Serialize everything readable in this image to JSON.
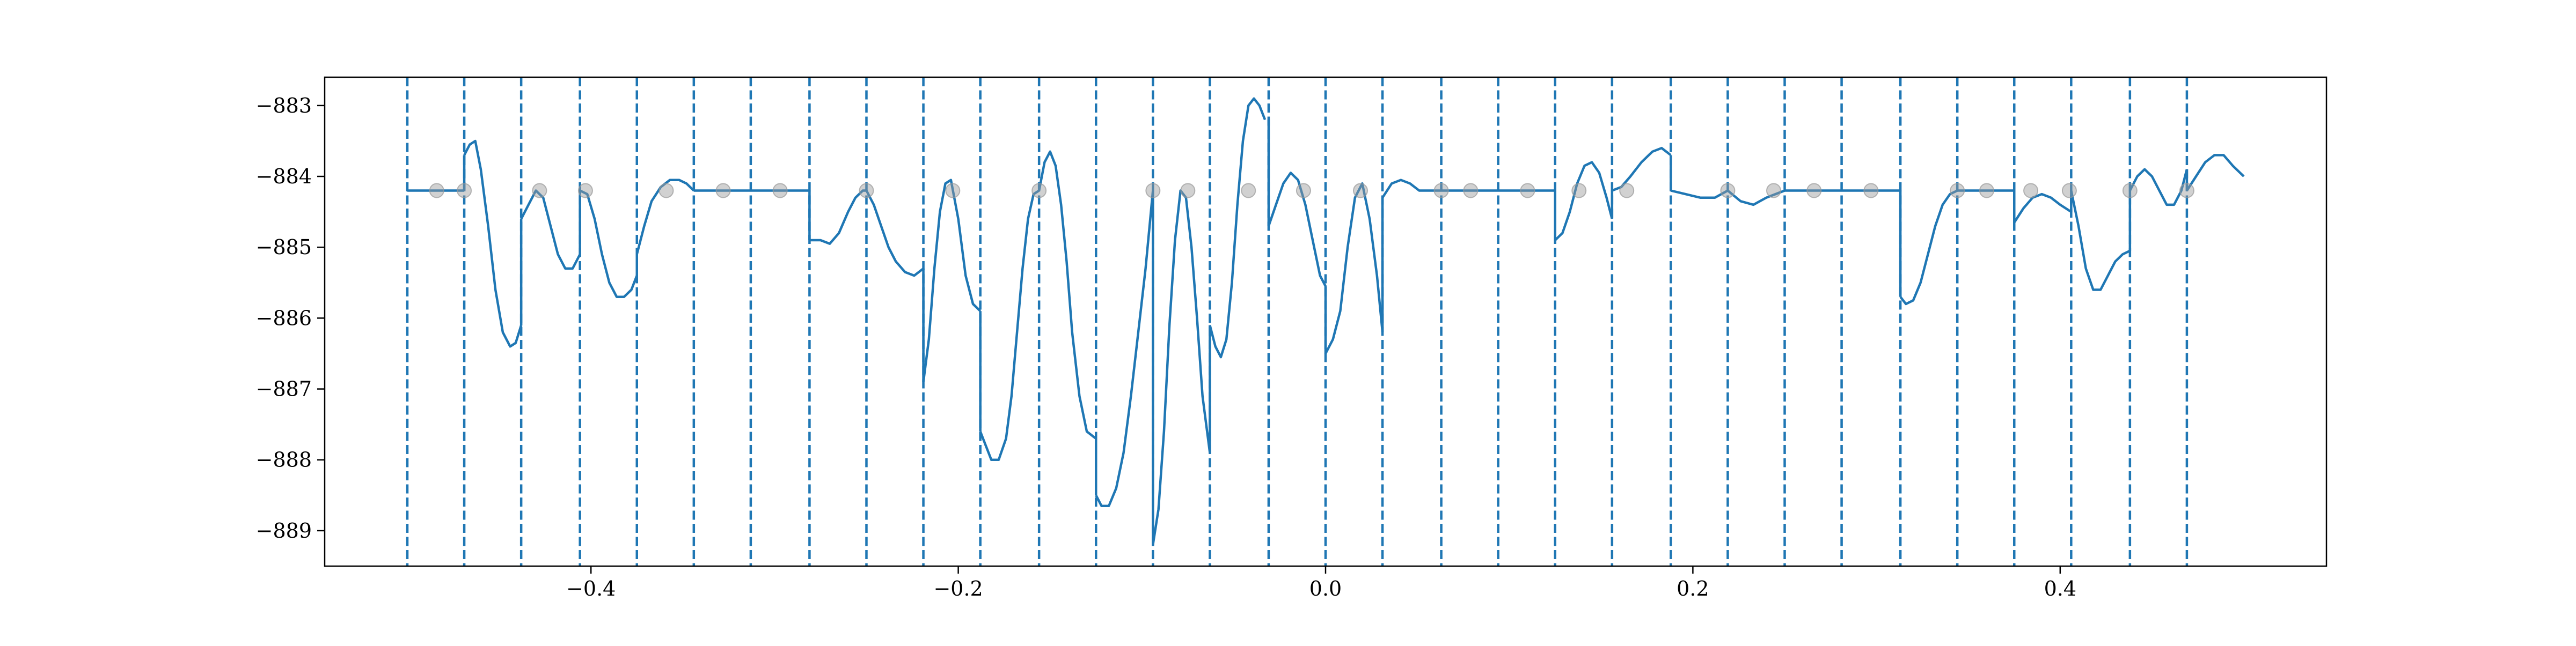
{
  "chart_data": {
    "type": "line",
    "title": "",
    "xlabel": "",
    "ylabel": "",
    "xlim": [
      -0.545,
      0.545
    ],
    "ylim": [
      -889.5,
      -882.6
    ],
    "grid": false,
    "legend": "none",
    "x_ticks": [
      -0.4,
      -0.2,
      0.0,
      0.2,
      0.4
    ],
    "x_tick_labels": [
      "−0.4",
      "−0.2",
      "0.0",
      "0.2",
      "0.4"
    ],
    "y_ticks": [
      -883,
      -884,
      -885,
      -886,
      -887,
      -888,
      -889
    ],
    "y_tick_labels": [
      "−883",
      "−884",
      "−885",
      "−886",
      "−887",
      "−888",
      "−889"
    ],
    "colors": {
      "line": "#1f77b4",
      "marker_fill": "#999999",
      "axes": "#000000"
    },
    "vertical_lines": {
      "style": "dashed",
      "x": [
        -0.5,
        -0.469,
        -0.438,
        -0.406,
        -0.375,
        -0.344,
        -0.313,
        -0.281,
        -0.25,
        -0.219,
        -0.188,
        -0.156,
        -0.125,
        -0.094,
        -0.063,
        -0.031,
        0.0,
        0.031,
        0.063,
        0.094,
        0.125,
        0.156,
        0.188,
        0.219,
        0.25,
        0.281,
        0.313,
        0.344,
        0.375,
        0.406,
        0.438,
        0.469
      ]
    },
    "series": [
      {
        "kind": "line",
        "segments": [
          {
            "x": [
              -0.5,
              -0.469
            ],
            "y": [
              -884.2,
              -884.2
            ]
          },
          {
            "x": [
              -0.469,
              -0.466,
              -0.463,
              -0.46,
              -0.456,
              -0.452,
              -0.448,
              -0.444,
              -0.441,
              -0.438
            ],
            "y": [
              -883.7,
              -883.55,
              -883.5,
              -883.9,
              -884.7,
              -885.6,
              -886.2,
              -886.4,
              -886.35,
              -886.1
            ]
          },
          {
            "x": [
              -0.438,
              -0.434,
              -0.43,
              -0.426,
              -0.422,
              -0.418,
              -0.414,
              -0.41,
              -0.406
            ],
            "y": [
              -884.6,
              -884.4,
              -884.2,
              -884.3,
              -884.7,
              -885.1,
              -885.3,
              -885.3,
              -885.1
            ]
          },
          {
            "x": [
              -0.406,
              -0.402,
              -0.398,
              -0.394,
              -0.39,
              -0.386,
              -0.382,
              -0.378,
              -0.375
            ],
            "y": [
              -884.2,
              -884.25,
              -884.6,
              -885.1,
              -885.5,
              -885.7,
              -885.7,
              -885.6,
              -885.4
            ]
          },
          {
            "x": [
              -0.375,
              -0.371,
              -0.367,
              -0.362,
              -0.357,
              -0.352,
              -0.348,
              -0.344
            ],
            "y": [
              -885.1,
              -884.7,
              -884.35,
              -884.15,
              -884.05,
              -884.05,
              -884.1,
              -884.2
            ]
          },
          {
            "x": [
              -0.344,
              -0.281
            ],
            "y": [
              -884.2,
              -884.2
            ]
          },
          {
            "x": [
              -0.281,
              -0.275,
              -0.27,
              -0.265,
              -0.26,
              -0.256,
              -0.252,
              -0.25
            ],
            "y": [
              -884.9,
              -884.9,
              -884.95,
              -884.8,
              -884.5,
              -884.3,
              -884.2,
              -884.2
            ]
          },
          {
            "x": [
              -0.25,
              -0.246,
              -0.242,
              -0.238,
              -0.234,
              -0.229,
              -0.224,
              -0.219
            ],
            "y": [
              -884.2,
              -884.4,
              -884.7,
              -885.0,
              -885.2,
              -885.35,
              -885.4,
              -885.3
            ]
          },
          {
            "x": [
              -0.219,
              -0.216,
              -0.213,
              -0.21,
              -0.207,
              -0.204,
              -0.2,
              -0.196,
              -0.192,
              -0.188
            ],
            "y": [
              -886.9,
              -886.3,
              -885.3,
              -884.5,
              -884.1,
              -884.05,
              -884.6,
              -885.4,
              -885.8,
              -885.9
            ]
          },
          {
            "x": [
              -0.188,
              -0.185,
              -0.182,
              -0.178,
              -0.174,
              -0.171,
              -0.168,
              -0.165,
              -0.162,
              -0.159,
              -0.156
            ],
            "y": [
              -887.6,
              -887.8,
              -888.0,
              -888.0,
              -887.7,
              -887.1,
              -886.2,
              -885.3,
              -884.6,
              -884.25,
              -884.2
            ]
          },
          {
            "x": [
              -0.156,
              -0.153,
              -0.15,
              -0.147,
              -0.144,
              -0.141,
              -0.138,
              -0.134,
              -0.13,
              -0.125
            ],
            "y": [
              -884.2,
              -883.8,
              -883.65,
              -883.85,
              -884.4,
              -885.2,
              -886.2,
              -887.1,
              -887.6,
              -887.7
            ]
          },
          {
            "x": [
              -0.125,
              -0.122,
              -0.118,
              -0.114,
              -0.11,
              -0.106,
              -0.102,
              -0.098,
              -0.094
            ],
            "y": [
              -888.5,
              -888.65,
              -888.65,
              -888.4,
              -887.9,
              -887.1,
              -886.2,
              -885.3,
              -884.2
            ]
          },
          {
            "x": [
              -0.094,
              -0.091,
              -0.088,
              -0.085,
              -0.082,
              -0.079,
              -0.076,
              -0.073,
              -0.07,
              -0.067,
              -0.063
            ],
            "y": [
              -889.2,
              -888.7,
              -887.6,
              -886.1,
              -884.9,
              -884.2,
              -884.3,
              -885.0,
              -886.0,
              -887.1,
              -887.9
            ]
          },
          {
            "x": [
              -0.063,
              -0.06,
              -0.057,
              -0.054,
              -0.051,
              -0.048,
              -0.045,
              -0.042,
              -0.039,
              -0.036,
              -0.033
            ],
            "y": [
              -886.1,
              -886.4,
              -886.55,
              -886.3,
              -885.5,
              -884.4,
              -883.5,
              -883.0,
              -882.9,
              -883.0,
              -883.2
            ]
          },
          {
            "x": [
              -0.031,
              -0.027,
              -0.023,
              -0.019,
              -0.015,
              -0.011,
              -0.007,
              -0.003,
              0.0
            ],
            "y": [
              -884.7,
              -884.4,
              -884.1,
              -883.95,
              -884.05,
              -884.4,
              -884.9,
              -885.4,
              -885.55
            ]
          },
          {
            "x": [
              0.0,
              0.004,
              0.008,
              0.012,
              0.016,
              0.02,
              0.024,
              0.028,
              0.031
            ],
            "y": [
              -886.5,
              -886.3,
              -885.9,
              -885.0,
              -884.3,
              -884.1,
              -884.6,
              -885.4,
              -886.2
            ]
          },
          {
            "x": [
              0.031,
              0.036,
              0.041,
              0.046,
              0.051,
              0.056,
              0.063
            ],
            "y": [
              -884.3,
              -884.1,
              -884.05,
              -884.1,
              -884.2,
              -884.2,
              -884.2
            ]
          },
          {
            "x": [
              0.063,
              0.125
            ],
            "y": [
              -884.2,
              -884.2
            ]
          },
          {
            "x": [
              0.125,
              0.129,
              0.133,
              0.137,
              0.141,
              0.145,
              0.149,
              0.153,
              0.156
            ],
            "y": [
              -884.9,
              -884.8,
              -884.5,
              -884.1,
              -883.85,
              -883.8,
              -883.95,
              -884.3,
              -884.6
            ]
          },
          {
            "x": [
              0.156,
              0.161,
              0.166,
              0.172,
              0.178,
              0.183,
              0.188
            ],
            "y": [
              -884.2,
              -884.15,
              -884.0,
              -883.8,
              -883.65,
              -883.6,
              -883.7
            ]
          },
          {
            "x": [
              0.188,
              0.196,
              0.204,
              0.212,
              0.219
            ],
            "y": [
              -884.2,
              -884.25,
              -884.3,
              -884.3,
              -884.2
            ]
          },
          {
            "x": [
              0.219,
              0.226,
              0.233,
              0.24,
              0.25
            ],
            "y": [
              -884.2,
              -884.35,
              -884.4,
              -884.3,
              -884.2
            ]
          },
          {
            "x": [
              0.25,
              0.313
            ],
            "y": [
              -884.2,
              -884.2
            ]
          },
          {
            "x": [
              0.313,
              0.316,
              0.32,
              0.324,
              0.328,
              0.332,
              0.336,
              0.34,
              0.344
            ],
            "y": [
              -885.7,
              -885.8,
              -885.75,
              -885.5,
              -885.1,
              -884.7,
              -884.4,
              -884.25,
              -884.2
            ]
          },
          {
            "x": [
              0.344,
              0.375
            ],
            "y": [
              -884.2,
              -884.2
            ]
          },
          {
            "x": [
              0.375,
              0.38,
              0.385,
              0.39,
              0.395,
              0.4,
              0.406
            ],
            "y": [
              -884.65,
              -884.45,
              -884.3,
              -884.25,
              -884.3,
              -884.4,
              -884.5
            ]
          },
          {
            "x": [
              0.406,
              0.41,
              0.414,
              0.418,
              0.422,
              0.426,
              0.43,
              0.434,
              0.438
            ],
            "y": [
              -884.2,
              -884.7,
              -885.3,
              -885.6,
              -885.6,
              -885.4,
              -885.2,
              -885.1,
              -885.05
            ]
          },
          {
            "x": [
              0.438,
              0.442,
              0.446,
              0.45,
              0.454,
              0.458,
              0.462,
              0.466,
              0.469
            ],
            "y": [
              -884.2,
              -884.0,
              -883.9,
              -884.0,
              -884.2,
              -884.4,
              -884.4,
              -884.2,
              -883.9
            ]
          },
          {
            "x": [
              0.469,
              0.474,
              0.479,
              0.484,
              0.489,
              0.494,
              0.5
            ],
            "y": [
              -884.2,
              -884.0,
              -883.8,
              -883.7,
              -883.7,
              -883.85,
              -884.0
            ]
          }
        ]
      },
      {
        "kind": "scatter",
        "x": [
          -0.484,
          -0.469,
          -0.428,
          -0.403,
          -0.359,
          -0.328,
          -0.297,
          -0.25,
          -0.203,
          -0.156,
          -0.094,
          -0.075,
          -0.042,
          -0.012,
          0.019,
          0.063,
          0.079,
          0.11,
          0.138,
          0.164,
          0.219,
          0.244,
          0.266,
          0.297,
          0.344,
          0.36,
          0.384,
          0.405,
          0.438,
          0.469
        ],
        "y": [
          -884.2,
          -884.2,
          -884.2,
          -884.2,
          -884.2,
          -884.2,
          -884.2,
          -884.2,
          -884.2,
          -884.2,
          -884.2,
          -884.2,
          -884.2,
          -884.2,
          -884.2,
          -884.2,
          -884.2,
          -884.2,
          -884.2,
          -884.2,
          -884.2,
          -884.2,
          -884.2,
          -884.2,
          -884.2,
          -884.2,
          -884.2,
          -884.2,
          -884.2,
          -884.2
        ]
      }
    ]
  }
}
